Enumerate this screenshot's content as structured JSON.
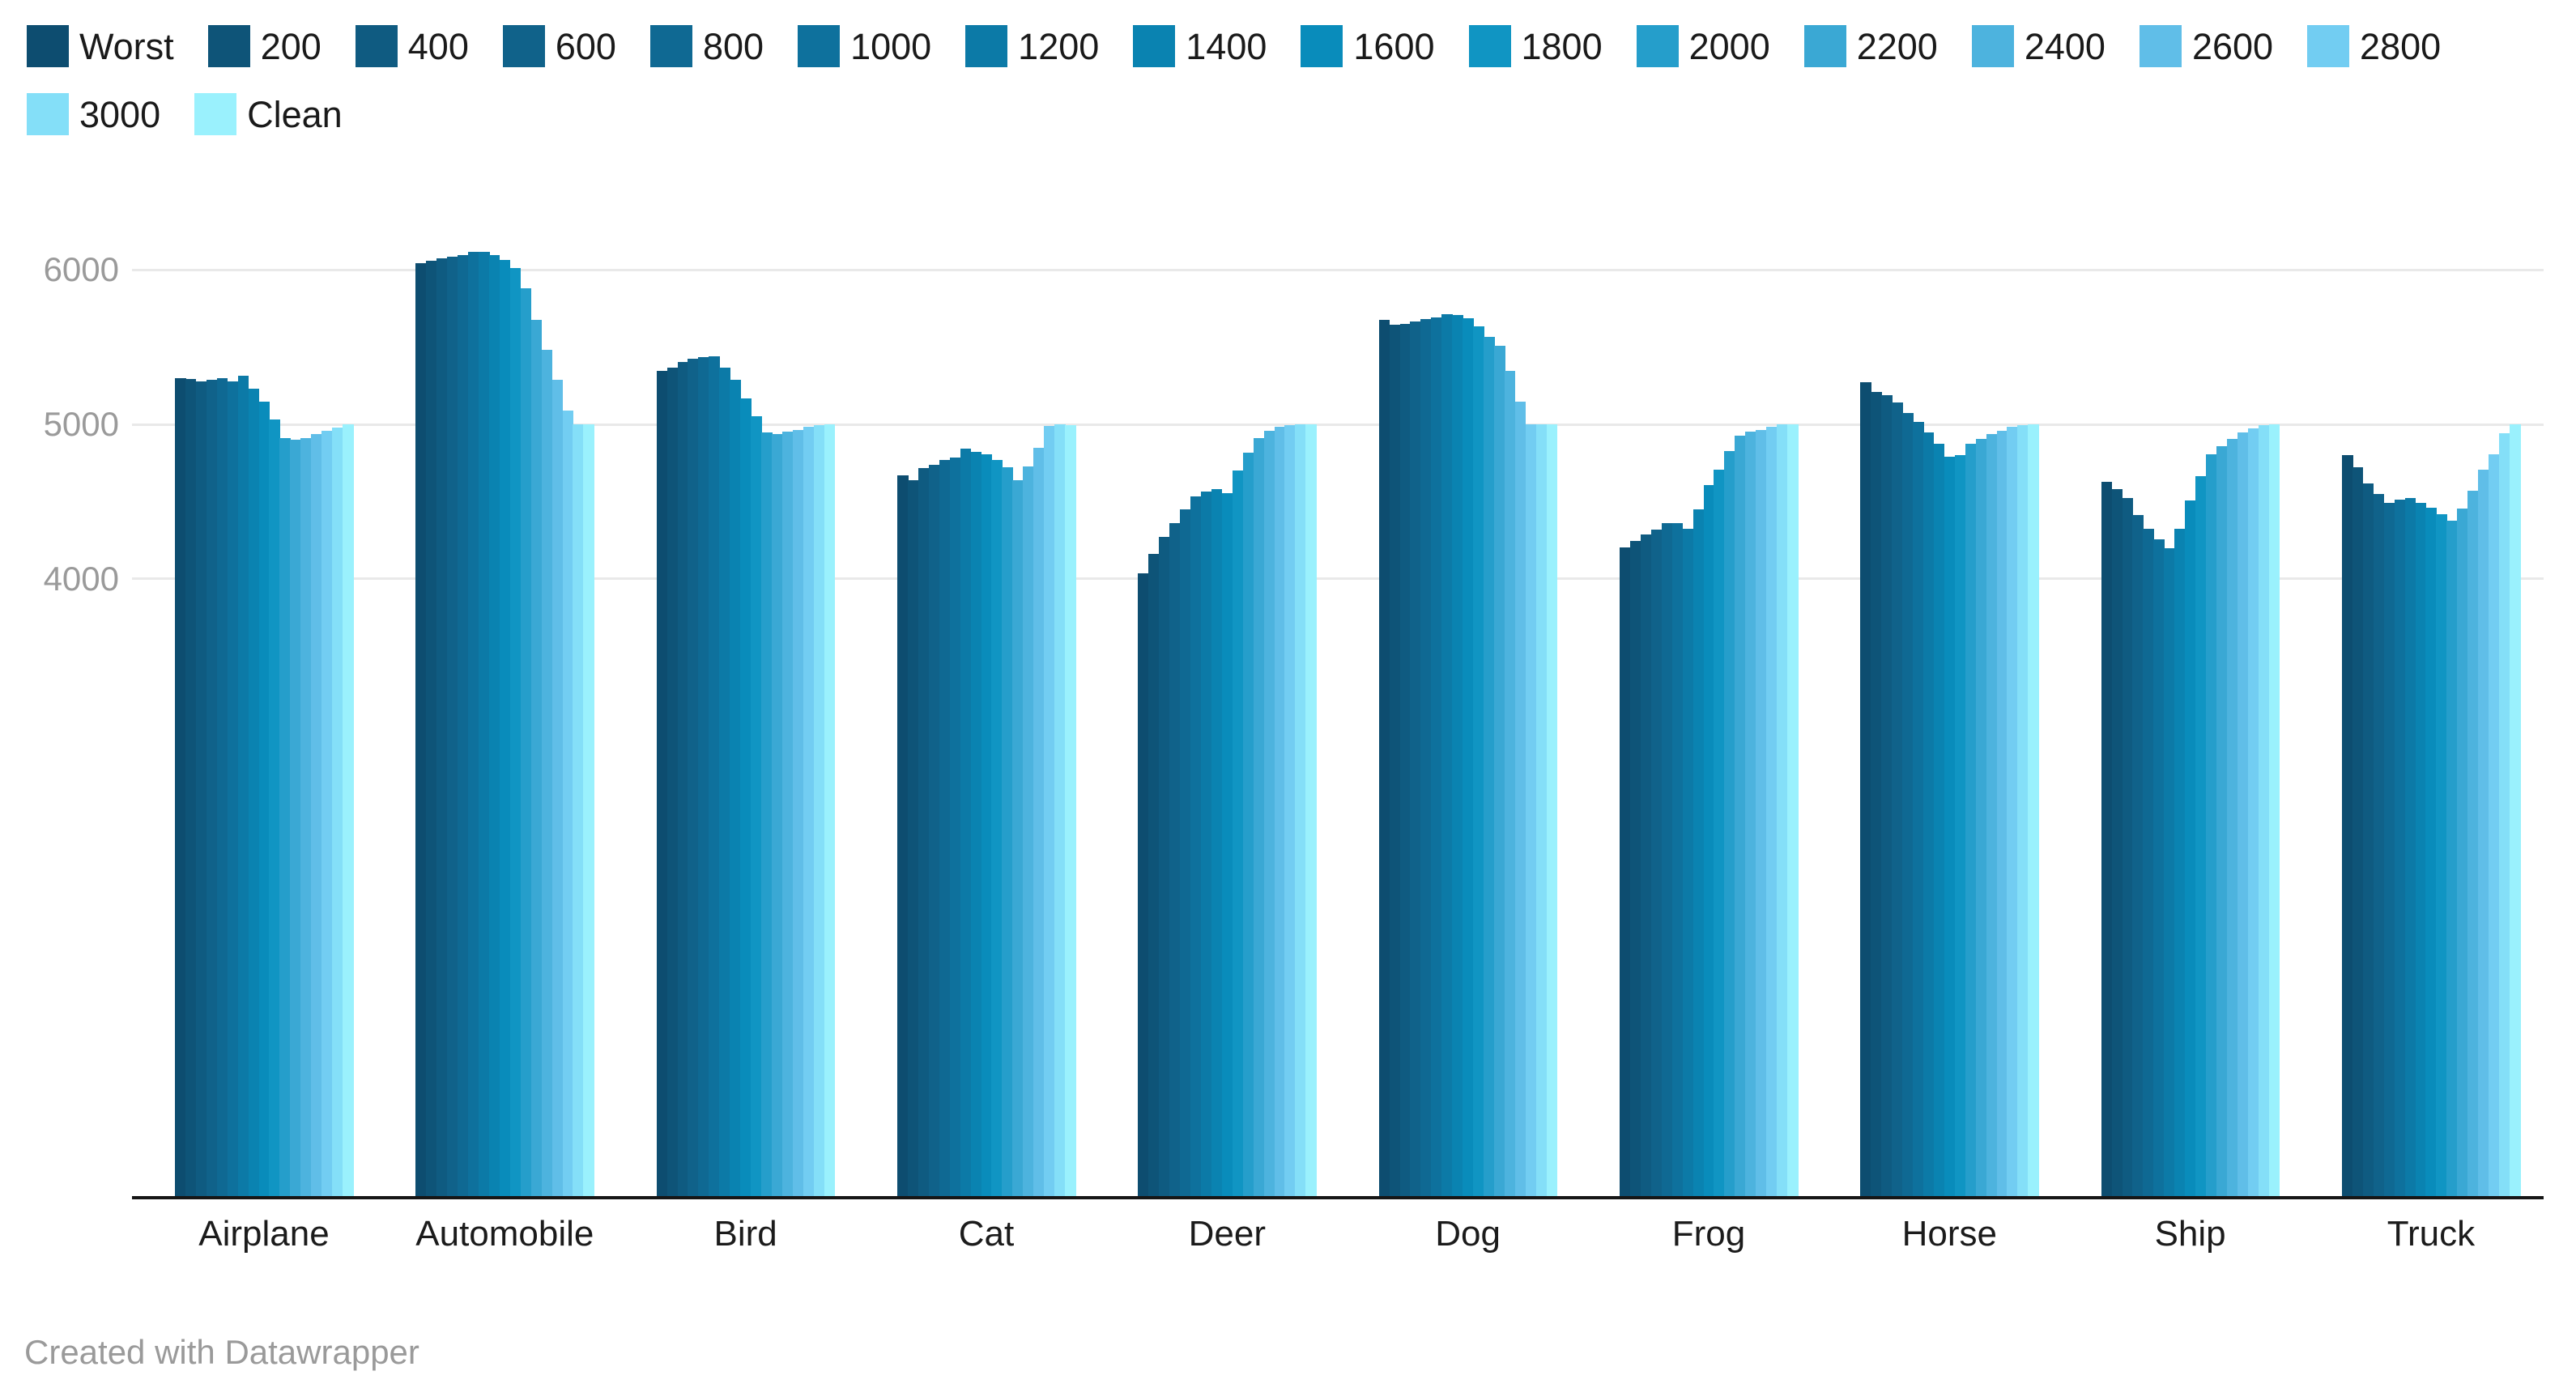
{
  "footer": {
    "credit": "Created with Datawrapper"
  },
  "colors": {
    "background": "#ffffff",
    "gridline": "#e9e9e9",
    "baseline": "#161616",
    "tick_text": "#9a9a9a",
    "category_text": "#1b1b1b",
    "legend_text": "#1a1a1a"
  },
  "chart_data": {
    "type": "bar",
    "title": "",
    "xlabel": "",
    "ylabel": "",
    "legend_position": "top",
    "grid": "horizontal",
    "ylim": [
      0,
      6270
    ],
    "axis_ticks": [
      "4000",
      "5000",
      "6000"
    ],
    "axis_tick_values": [
      4000,
      5000,
      6000
    ],
    "categories": [
      "Airplane",
      "Automobile",
      "Bird",
      "Cat",
      "Deer",
      "Dog",
      "Frog",
      "Horse",
      "Ship",
      "Truck"
    ],
    "series": [
      {
        "name": "Worst",
        "color": "#0d4d70",
        "values": [
          5300,
          6045,
          5345,
          4670,
          4035,
          5675,
          4200,
          5275,
          4625,
          4800
        ]
      },
      {
        "name": "200",
        "color": "#0e5478",
        "values": [
          5295,
          6060,
          5365,
          4640,
          4160,
          5645,
          4245,
          5210,
          4580,
          4720
        ]
      },
      {
        "name": "400",
        "color": "#0f5b81",
        "values": [
          5280,
          6075,
          5405,
          4715,
          4270,
          5650,
          4285,
          5190,
          4525,
          4615
        ]
      },
      {
        "name": "600",
        "color": "#10628a",
        "values": [
          5290,
          6085,
          5425,
          4740,
          4360,
          5665,
          4320,
          5140,
          4410,
          4550
        ]
      },
      {
        "name": "800",
        "color": "#0f6993",
        "values": [
          5300,
          6095,
          5435,
          4770,
          4450,
          5680,
          4360,
          5075,
          4325,
          4490
        ]
      },
      {
        "name": "1000",
        "color": "#0e719d",
        "values": [
          5280,
          6115,
          5440,
          4785,
          4535,
          5690,
          4360,
          5015,
          4255,
          4510
        ]
      },
      {
        "name": "1200",
        "color": "#0c7aa7",
        "values": [
          5315,
          6115,
          5365,
          4840,
          4565,
          5715,
          4325,
          4945,
          4195,
          4520
        ]
      },
      {
        "name": "1400",
        "color": "#0a83b1",
        "values": [
          5230,
          6095,
          5290,
          4820,
          4580,
          5710,
          4450,
          4875,
          4325,
          4490
        ]
      },
      {
        "name": "1600",
        "color": "#098cbb",
        "values": [
          5145,
          6065,
          5170,
          4805,
          4555,
          5685,
          4605,
          4790,
          4505,
          4460
        ]
      },
      {
        "name": "1800",
        "color": "#1095c3",
        "values": [
          5030,
          6015,
          5055,
          4770,
          4700,
          5635,
          4705,
          4800,
          4665,
          4420
        ]
      },
      {
        "name": "2000",
        "color": "#259ecb",
        "values": [
          4910,
          5880,
          4945,
          4720,
          4815,
          5565,
          4825,
          4875,
          4805,
          4375
        ]
      },
      {
        "name": "2200",
        "color": "#3aa8d4",
        "values": [
          4900,
          5675,
          4935,
          4640,
          4910,
          5510,
          4925,
          4905,
          4860,
          4455
        ]
      },
      {
        "name": "2400",
        "color": "#4db3de",
        "values": [
          4910,
          5485,
          4955,
          4725,
          4960,
          5345,
          4955,
          4935,
          4905,
          4570
        ]
      },
      {
        "name": "2600",
        "color": "#60bee8",
        "values": [
          4935,
          5290,
          4965,
          4850,
          4985,
          5145,
          4965,
          4960,
          4950,
          4705
        ]
      },
      {
        "name": "2800",
        "color": "#72cdf2",
        "values": [
          4960,
          5090,
          4985,
          4990,
          4995,
          5000,
          4985,
          4985,
          4975,
          4805
        ]
      },
      {
        "name": "3000",
        "color": "#84dff8",
        "values": [
          4980,
          5000,
          4995,
          5000,
          5000,
          5000,
          5000,
          4995,
          4995,
          4940
        ]
      },
      {
        "name": "Clean",
        "color": "#9af1fd",
        "values": [
          5000,
          5000,
          5000,
          4995,
          5000,
          5000,
          5000,
          5000,
          5000,
          5000
        ]
      }
    ]
  }
}
